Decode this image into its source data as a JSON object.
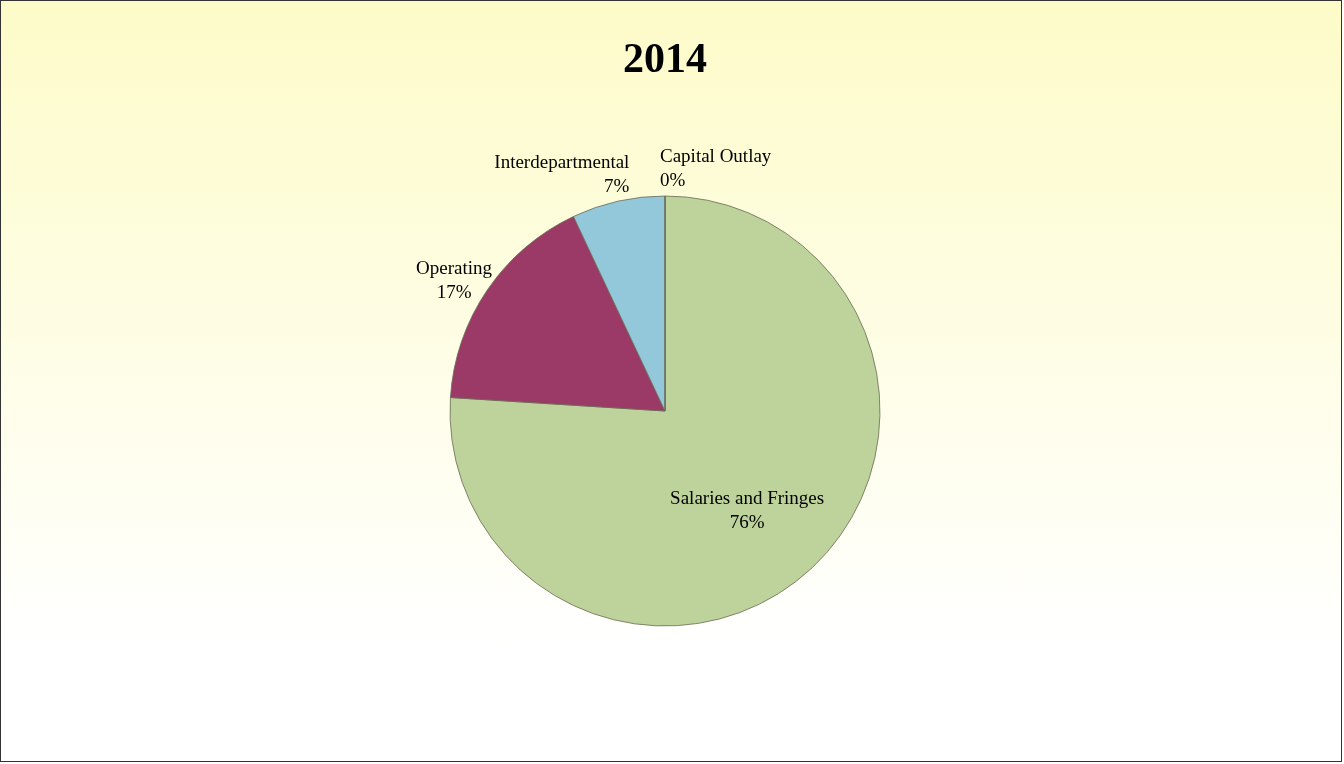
{
  "chart_data": {
    "type": "pie",
    "title": "2014",
    "categories": [
      "Salaries and Fringes",
      "Operating",
      "Interdepartmental",
      "Capital Outlay"
    ],
    "values": [
      76,
      17,
      7,
      0
    ],
    "value_labels": [
      "76%",
      "17%",
      "7%",
      "0%"
    ],
    "colors": [
      "#bdd39b",
      "#9b3a66",
      "#93c7da",
      "#c9c9a3"
    ],
    "legend": false
  }
}
